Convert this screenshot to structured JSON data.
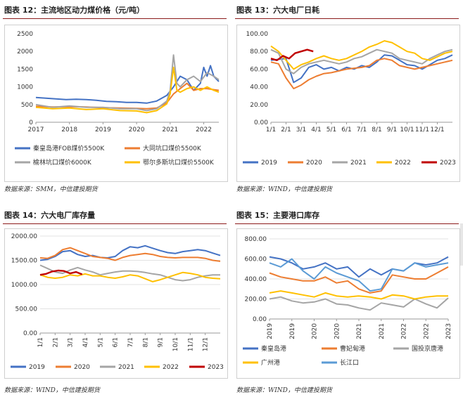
{
  "colors": {
    "blue": "#4472C4",
    "orange": "#ED7D31",
    "gray": "#A5A5A5",
    "yellow": "#FFC000",
    "darkred": "#C00000",
    "lightblue": "#5B9BD5",
    "accent": "#8B1A1A"
  },
  "panels": [
    {
      "title": "图表 12：主流地区动力煤价格（元/吨）",
      "source": "数据来源：SMM，中信建投期货"
    },
    {
      "title": "图表 13：六大电厂日耗",
      "source": "数据来源：WIND，中信建投期货"
    },
    {
      "title": "图表 14：六大电厂库存量",
      "source": "数据来源：WIND，中信建投期货"
    },
    {
      "title": "图表 15：主要港口库存",
      "source": "数据来源：WIND，中信建投期货"
    }
  ],
  "chart_data": [
    {
      "type": "line",
      "title": "主流地区动力煤价格（元/吨）",
      "ylim": [
        0,
        2500
      ],
      "yticks": [
        "0",
        "500",
        "1000",
        "1500",
        "2000",
        "2500"
      ],
      "xticks": [
        "2017",
        "2018",
        "2019",
        "2020",
        "2021",
        "2022"
      ],
      "xrange": [
        2017,
        2022.45
      ],
      "series": [
        {
          "name": "秦皇岛港FOB煤价5500K",
          "color": "#4472C4",
          "x": [
            2017,
            2017.3,
            2017.6,
            2017.9,
            2018.2,
            2018.5,
            2018.8,
            2019.1,
            2019.4,
            2019.7,
            2020.0,
            2020.3,
            2020.6,
            2020.9,
            2021.1,
            2021.3,
            2021.5,
            2021.7,
            2021.9,
            2022.0,
            2022.1,
            2022.2,
            2022.3,
            2022.45
          ],
          "y": [
            700,
            680,
            660,
            640,
            650,
            640,
            620,
            590,
            580,
            560,
            560,
            540,
            600,
            760,
            1000,
            1300,
            1200,
            900,
            1100,
            1550,
            1300,
            1600,
            1300,
            1150
          ]
        },
        {
          "name": "大同坑口煤价5500K",
          "color": "#ED7D31",
          "x": [
            2017,
            2017.5,
            2018,
            2018.5,
            2019,
            2019.5,
            2020,
            2020.3,
            2020.6,
            2020.9,
            2021.1,
            2021.3,
            2021.5,
            2021.7,
            2021.9,
            2022.1,
            2022.3,
            2022.45
          ],
          "y": [
            450,
            430,
            440,
            430,
            410,
            400,
            390,
            380,
            400,
            550,
            800,
            950,
            1100,
            900,
            950,
            950,
            920,
            900
          ]
        },
        {
          "name": "榆林坑口煤价6000K",
          "color": "#A5A5A5",
          "x": [
            2017,
            2017.5,
            2018,
            2018.5,
            2019,
            2019.5,
            2020,
            2020.3,
            2020.6,
            2020.9,
            2021.0,
            2021.1,
            2021.2,
            2021.3,
            2021.5,
            2021.7,
            2021.9,
            2022.1,
            2022.3,
            2022.45
          ],
          "y": [
            500,
            420,
            460,
            420,
            420,
            380,
            380,
            330,
            380,
            600,
            900,
            1900,
            1100,
            1000,
            1200,
            1300,
            1150,
            1400,
            1300,
            1200
          ]
        },
        {
          "name": "鄂尔多斯坑口煤价5500K",
          "color": "#FFC000",
          "x": [
            2017,
            2017.5,
            2018,
            2018.5,
            2019,
            2019.5,
            2020,
            2020.3,
            2020.6,
            2020.9,
            2021.0,
            2021.1,
            2021.2,
            2021.3,
            2021.5,
            2021.7,
            2021.9,
            2022.1,
            2022.3,
            2022.45
          ],
          "y": [
            420,
            380,
            400,
            360,
            380,
            330,
            320,
            270,
            330,
            520,
            800,
            1550,
            900,
            850,
            950,
            1000,
            900,
            1000,
            900,
            850
          ]
        }
      ]
    },
    {
      "type": "line",
      "title": "六大电厂日耗",
      "ylim": [
        0,
        100
      ],
      "yticks": [
        "0.00",
        "20.00",
        "40.00",
        "60.00",
        "80.00",
        "100.00"
      ],
      "xticks": [
        "1/1",
        "2/1",
        "3/1",
        "4/1",
        "5/1",
        "6/1",
        "7/1",
        "8/1",
        "9/1",
        "10/1",
        "11/1",
        "12/1"
      ],
      "series": [
        {
          "name": "2019",
          "color": "#4472C4",
          "x": [
            0,
            1,
            1.5,
            2,
            2.5,
            3,
            3.5,
            4,
            4.5,
            5,
            5.5,
            6,
            6.5,
            7,
            7.5,
            8,
            8.5,
            9,
            9.5,
            10,
            10.5,
            11,
            11.5,
            12
          ],
          "y": [
            70,
            72,
            45,
            50,
            62,
            65,
            60,
            62,
            58,
            62,
            60,
            64,
            62,
            68,
            76,
            75,
            70,
            65,
            64,
            60,
            65,
            70,
            72,
            76
          ]
        },
        {
          "name": "2020",
          "color": "#ED7D31",
          "x": [
            0,
            0.5,
            1,
            1.5,
            2,
            2.5,
            3,
            3.5,
            4,
            4.5,
            5,
            5.5,
            6,
            6.5,
            7,
            7.5,
            8,
            8.5,
            9,
            9.5,
            10,
            10.5,
            11,
            11.5,
            12
          ],
          "y": [
            68,
            66,
            50,
            38,
            42,
            48,
            52,
            55,
            56,
            58,
            60,
            61,
            62,
            64,
            70,
            72,
            70,
            64,
            62,
            60,
            62,
            64,
            66,
            68,
            70
          ]
        },
        {
          "name": "2021",
          "color": "#A5A5A5",
          "x": [
            0,
            0.5,
            1,
            1.5,
            2,
            2.5,
            3,
            3.5,
            4,
            4.5,
            5,
            5.5,
            6,
            6.5,
            7,
            7.5,
            8,
            8.5,
            9,
            9.5,
            10,
            10.5,
            11,
            11.5,
            12
          ],
          "y": [
            82,
            78,
            60,
            55,
            62,
            66,
            68,
            70,
            68,
            66,
            68,
            72,
            74,
            78,
            82,
            80,
            78,
            72,
            70,
            68,
            66,
            72,
            76,
            80,
            82
          ]
        },
        {
          "name": "2022",
          "color": "#FFC000",
          "x": [
            0,
            0.5,
            1,
            1.5,
            2,
            2.5,
            3,
            3.5,
            4,
            4.5,
            5,
            5.5,
            6,
            6.5,
            7,
            7.5,
            8,
            8.5,
            9,
            9.5,
            10,
            10.5,
            11,
            11.5,
            12
          ],
          "y": [
            86,
            80,
            70,
            60,
            65,
            68,
            72,
            75,
            72,
            70,
            72,
            76,
            80,
            85,
            88,
            92,
            90,
            85,
            80,
            78,
            72,
            70,
            74,
            78,
            80
          ]
        },
        {
          "name": "2023",
          "color": "#C00000",
          "x": [
            0,
            0.4,
            0.8,
            1.2,
            1.6,
            2,
            2.4,
            2.8
          ],
          "y": [
            72,
            70,
            75,
            72,
            78,
            80,
            82,
            80
          ]
        }
      ]
    },
    {
      "type": "line",
      "title": "六大电厂库存量",
      "ylim": [
        0,
        2000
      ],
      "yticks": [
        "0.00",
        "500.00",
        "1000.00",
        "1500.00",
        "2000.00"
      ],
      "xticks": [
        "1/1",
        "2/1",
        "3/1",
        "4/1",
        "5/1",
        "6/1",
        "7/1",
        "8/1",
        "9/1",
        "10/1",
        "11/1",
        "12/1"
      ],
      "series": [
        {
          "name": "2019",
          "color": "#4472C4",
          "x": [
            0,
            0.5,
            1,
            1.5,
            2,
            2.5,
            3,
            3.5,
            4,
            4.5,
            5,
            5.5,
            6,
            6.5,
            7,
            7.5,
            8,
            8.5,
            9,
            9.5,
            10,
            10.5,
            11,
            11.5,
            12
          ],
          "y": [
            1500,
            1520,
            1580,
            1680,
            1700,
            1620,
            1580,
            1600,
            1560,
            1550,
            1580,
            1700,
            1780,
            1760,
            1800,
            1750,
            1700,
            1660,
            1640,
            1680,
            1700,
            1720,
            1700,
            1650,
            1600
          ]
        },
        {
          "name": "2020",
          "color": "#ED7D31",
          "x": [
            0,
            0.5,
            1,
            1.5,
            2,
            2.5,
            3,
            3.5,
            4,
            4.5,
            5,
            5.5,
            6,
            6.5,
            7,
            7.5,
            8,
            8.5,
            9,
            9.5,
            10,
            10.5,
            11,
            11.5,
            12
          ],
          "y": [
            1550,
            1540,
            1600,
            1720,
            1760,
            1700,
            1640,
            1580,
            1560,
            1540,
            1500,
            1560,
            1600,
            1620,
            1640,
            1620,
            1580,
            1560,
            1550,
            1560,
            1560,
            1560,
            1540,
            1500,
            1480
          ]
        },
        {
          "name": "2021",
          "color": "#A5A5A5",
          "x": [
            0,
            0.5,
            1,
            1.5,
            2,
            2.5,
            3,
            3.5,
            4,
            4.5,
            5,
            5.5,
            6,
            6.5,
            7,
            7.5,
            8,
            8.5,
            9,
            9.5,
            10,
            10.5,
            11,
            11.5,
            12
          ],
          "y": [
            1400,
            1330,
            1260,
            1230,
            1300,
            1350,
            1300,
            1260,
            1200,
            1230,
            1260,
            1280,
            1280,
            1270,
            1250,
            1220,
            1200,
            1150,
            1100,
            1080,
            1100,
            1150,
            1180,
            1200,
            1200
          ]
        },
        {
          "name": "2022",
          "color": "#FFC000",
          "x": [
            0,
            0.5,
            1,
            1.5,
            2,
            2.5,
            3,
            3.5,
            4,
            4.5,
            5,
            5.5,
            6,
            6.5,
            7,
            7.5,
            8,
            8.5,
            9,
            9.5,
            10,
            10.5,
            11,
            11.5,
            12
          ],
          "y": [
            1200,
            1150,
            1130,
            1150,
            1200,
            1180,
            1220,
            1180,
            1180,
            1150,
            1130,
            1160,
            1200,
            1180,
            1120,
            1060,
            1100,
            1150,
            1200,
            1250,
            1230,
            1200,
            1150,
            1130,
            1120
          ]
        },
        {
          "name": "2023",
          "color": "#C00000",
          "x": [
            0,
            0.4,
            0.8,
            1.2,
            1.6,
            2,
            2.4,
            2.8
          ],
          "y": [
            1200,
            1220,
            1270,
            1290,
            1280,
            1230,
            1260,
            1210
          ]
        }
      ]
    },
    {
      "type": "line",
      "title": "主要港口库存",
      "ylim": [
        0,
        800
      ],
      "yticks": [
        "0.00",
        "200.00",
        "400.00",
        "600.00",
        "800.00"
      ],
      "xticks": [
        "2019",
        "2019",
        "2020",
        "2020",
        "2021",
        "2021",
        "2022",
        "2022",
        "2023"
      ],
      "series": [
        {
          "name": "秦皇岛港",
          "color": "#4472C4",
          "x": [
            0,
            0.5,
            1,
            1.5,
            2,
            2.5,
            3,
            3.5,
            4,
            4.5,
            5,
            5.5,
            6,
            6.5,
            7,
            7.5,
            8
          ],
          "y": [
            620,
            600,
            560,
            500,
            520,
            560,
            500,
            520,
            420,
            500,
            440,
            500,
            480,
            560,
            540,
            560,
            620
          ]
        },
        {
          "name": "曹妃甸港",
          "color": "#ED7D31",
          "x": [
            0,
            0.5,
            1,
            1.5,
            2,
            2.5,
            3,
            3.5,
            4,
            4.5,
            5,
            5.5,
            6,
            6.5,
            7,
            7.5,
            8
          ],
          "y": [
            460,
            420,
            400,
            380,
            380,
            420,
            360,
            380,
            300,
            260,
            280,
            440,
            420,
            400,
            400,
            460,
            520
          ]
        },
        {
          "name": "国投京唐港",
          "color": "#A5A5A5",
          "x": [
            0,
            0.5,
            1,
            1.5,
            2,
            2.5,
            3,
            3.5,
            4,
            4.5,
            5,
            5.5,
            6,
            6.5,
            7,
            7.5,
            8
          ],
          "y": [
            200,
            220,
            180,
            160,
            170,
            200,
            150,
            140,
            110,
            90,
            160,
            140,
            120,
            200,
            150,
            110,
            210
          ]
        },
        {
          "name": "广州港",
          "color": "#FFC000",
          "x": [
            0,
            0.5,
            1,
            1.5,
            2,
            2.5,
            3,
            3.5,
            4,
            4.5,
            5,
            5.5,
            6,
            6.5,
            7,
            7.5,
            8
          ],
          "y": [
            260,
            280,
            260,
            240,
            220,
            260,
            230,
            220,
            230,
            220,
            200,
            240,
            230,
            200,
            220,
            230,
            230
          ]
        },
        {
          "name": "长江口",
          "color": "#5B9BD5",
          "x": [
            0,
            0.5,
            1,
            1.5,
            2,
            2.5,
            3,
            3.5,
            4,
            4.5,
            5,
            5.5,
            6,
            6.5,
            7,
            7.5,
            8
          ],
          "y": [
            560,
            520,
            600,
            480,
            400,
            520,
            460,
            420,
            380,
            280,
            300,
            500,
            480,
            560,
            520,
            540,
            560
          ]
        }
      ]
    }
  ]
}
